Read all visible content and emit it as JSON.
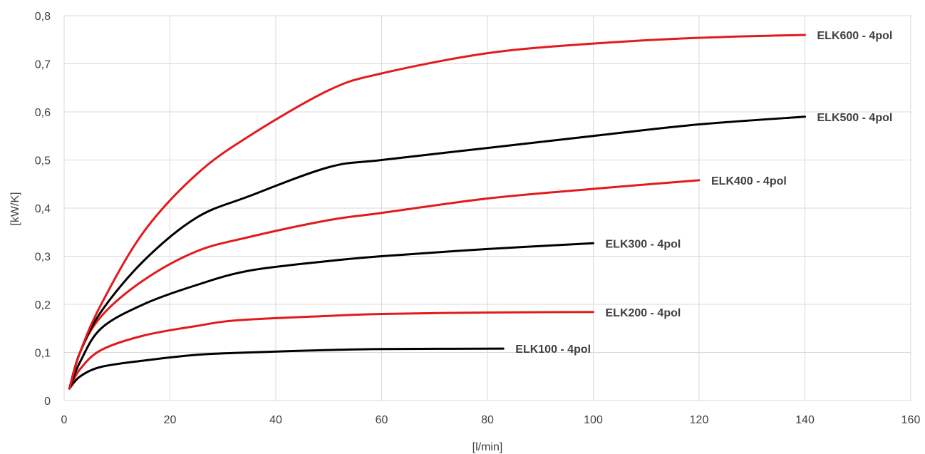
{
  "chart_data": {
    "type": "line",
    "title": "",
    "xlabel": "[l/min]",
    "ylabel": "[kW/K]",
    "xlim": [
      0,
      160
    ],
    "ylim": [
      0,
      0.8
    ],
    "x_ticks": [
      0,
      20,
      40,
      60,
      80,
      100,
      120,
      140,
      160
    ],
    "y_ticks": [
      0,
      0.1,
      0.2,
      0.3,
      0.4,
      0.5,
      0.6,
      0.7,
      0.8
    ],
    "x_tick_labels": [
      "0",
      "20",
      "40",
      "60",
      "80",
      "100",
      "120",
      "140",
      "160"
    ],
    "y_tick_labels": [
      "0",
      "0,1",
      "0,2",
      "0,3",
      "0,4",
      "0,5",
      "0,6",
      "0,7",
      "0,8"
    ],
    "grid": true,
    "legend": "labels at line ends",
    "series": [
      {
        "name": "ELK100 - 4pol",
        "color": "#000000",
        "points": [
          [
            1,
            0.025
          ],
          [
            3,
            0.05
          ],
          [
            7,
            0.07
          ],
          [
            15,
            0.083
          ],
          [
            25,
            0.095
          ],
          [
            35,
            0.1
          ],
          [
            50,
            0.105
          ],
          [
            60,
            0.107
          ],
          [
            83,
            0.108
          ]
        ]
      },
      {
        "name": "ELK200 - 4pol",
        "color": "#e31a1c",
        "points": [
          [
            1,
            0.025
          ],
          [
            3,
            0.065
          ],
          [
            7,
            0.105
          ],
          [
            15,
            0.135
          ],
          [
            25,
            0.155
          ],
          [
            33,
            0.167
          ],
          [
            50,
            0.176
          ],
          [
            60,
            0.18
          ],
          [
            80,
            0.183
          ],
          [
            100,
            0.184
          ]
        ]
      },
      {
        "name": "ELK300 - 4pol",
        "color": "#000000",
        "points": [
          [
            1,
            0.025
          ],
          [
            3,
            0.08
          ],
          [
            7,
            0.15
          ],
          [
            15,
            0.2
          ],
          [
            25,
            0.24
          ],
          [
            35,
            0.27
          ],
          [
            50,
            0.29
          ],
          [
            60,
            0.3
          ],
          [
            80,
            0.315
          ],
          [
            100,
            0.327
          ]
        ]
      },
      {
        "name": "ELK400 - 4pol",
        "color": "#e31a1c",
        "points": [
          [
            1,
            0.025
          ],
          [
            3,
            0.1
          ],
          [
            7,
            0.175
          ],
          [
            15,
            0.25
          ],
          [
            25,
            0.31
          ],
          [
            35,
            0.34
          ],
          [
            50,
            0.375
          ],
          [
            60,
            0.39
          ],
          [
            80,
            0.42
          ],
          [
            100,
            0.44
          ],
          [
            120,
            0.458
          ]
        ]
      },
      {
        "name": "ELK500 - 4pol",
        "color": "#000000",
        "points": [
          [
            1,
            0.025
          ],
          [
            3,
            0.1
          ],
          [
            7,
            0.185
          ],
          [
            15,
            0.29
          ],
          [
            25,
            0.38
          ],
          [
            35,
            0.425
          ],
          [
            50,
            0.485
          ],
          [
            60,
            0.5
          ],
          [
            80,
            0.525
          ],
          [
            100,
            0.55
          ],
          [
            120,
            0.574
          ],
          [
            140,
            0.59
          ]
        ]
      },
      {
        "name": "ELK600 - 4pol",
        "color": "#e31a1c",
        "points": [
          [
            1,
            0.025
          ],
          [
            3,
            0.1
          ],
          [
            7,
            0.2
          ],
          [
            15,
            0.35
          ],
          [
            25,
            0.47
          ],
          [
            35,
            0.55
          ],
          [
            50,
            0.645
          ],
          [
            60,
            0.68
          ],
          [
            80,
            0.722
          ],
          [
            100,
            0.742
          ],
          [
            120,
            0.754
          ],
          [
            140,
            0.76
          ]
        ]
      }
    ]
  }
}
